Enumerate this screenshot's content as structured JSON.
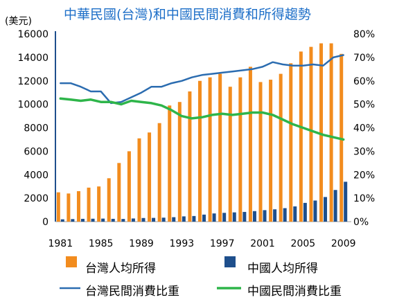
{
  "chart_data": {
    "type": "bar",
    "title": "中華民國(台灣)和中國民間消費和所得趨勢",
    "left_axis_unit": "(美元)",
    "x": [
      1981,
      1982,
      1983,
      1984,
      1985,
      1986,
      1987,
      1988,
      1989,
      1990,
      1991,
      1992,
      1993,
      1994,
      1995,
      1996,
      1997,
      1998,
      1999,
      2000,
      2001,
      2002,
      2003,
      2004,
      2005,
      2006,
      2007,
      2008,
      2009
    ],
    "x_tick_labels": [
      "1981",
      "1985",
      "1989",
      "1993",
      "1997",
      "2001",
      "2005",
      "2009"
    ],
    "ylim_left": [
      0,
      16000
    ],
    "y_left_ticks": [
      "0",
      "2000",
      "4000",
      "6000",
      "8000",
      "10000",
      "12000",
      "14000",
      "16000"
    ],
    "ylim_right": [
      0,
      80
    ],
    "y_right_ticks": [
      "0%",
      "10%",
      "20%",
      "30%",
      "40%",
      "50%",
      "60%",
      "70%",
      "80%"
    ],
    "bar_series": [
      {
        "name": "台灣人均所得",
        "color": "#f28c1e",
        "values": [
          2500,
          2400,
          2600,
          2900,
          3000,
          3700,
          5000,
          6000,
          7100,
          7600,
          8400,
          9900,
          10200,
          11100,
          12000,
          12300,
          12600,
          11500,
          12300,
          13200,
          11900,
          12100,
          12600,
          13500,
          14500,
          14900,
          15200,
          15200,
          14300
        ]
      },
      {
        "name": "中國人均所得",
        "color": "#1e4f8c",
        "values": [
          200,
          220,
          240,
          250,
          260,
          240,
          230,
          270,
          310,
          320,
          340,
          380,
          450,
          480,
          600,
          700,
          750,
          790,
          830,
          900,
          980,
          1050,
          1150,
          1300,
          1600,
          1800,
          2100,
          2700,
          3400
        ]
      }
    ],
    "line_series": [
      {
        "name": "台灣民間消費比重",
        "color": "#2b6cb0",
        "values": [
          59,
          59,
          57.5,
          55.5,
          55.5,
          50.5,
          51,
          53,
          55,
          57.5,
          57.5,
          59,
          60,
          61.5,
          62.5,
          63,
          63.5,
          64,
          64.5,
          65,
          66,
          68,
          67,
          66.5,
          66.5,
          67,
          66.5,
          70,
          71
        ]
      },
      {
        "name": "中國民間消費比重",
        "color": "#2eb54a",
        "values": [
          52.5,
          52,
          51.5,
          52,
          51,
          51,
          50,
          51.5,
          51,
          50.5,
          49.5,
          47.5,
          45,
          44,
          44.5,
          45.5,
          46,
          45.5,
          46,
          46.5,
          46.5,
          45.5,
          43.5,
          41.5,
          40,
          38.5,
          37,
          36,
          35
        ]
      }
    ]
  }
}
